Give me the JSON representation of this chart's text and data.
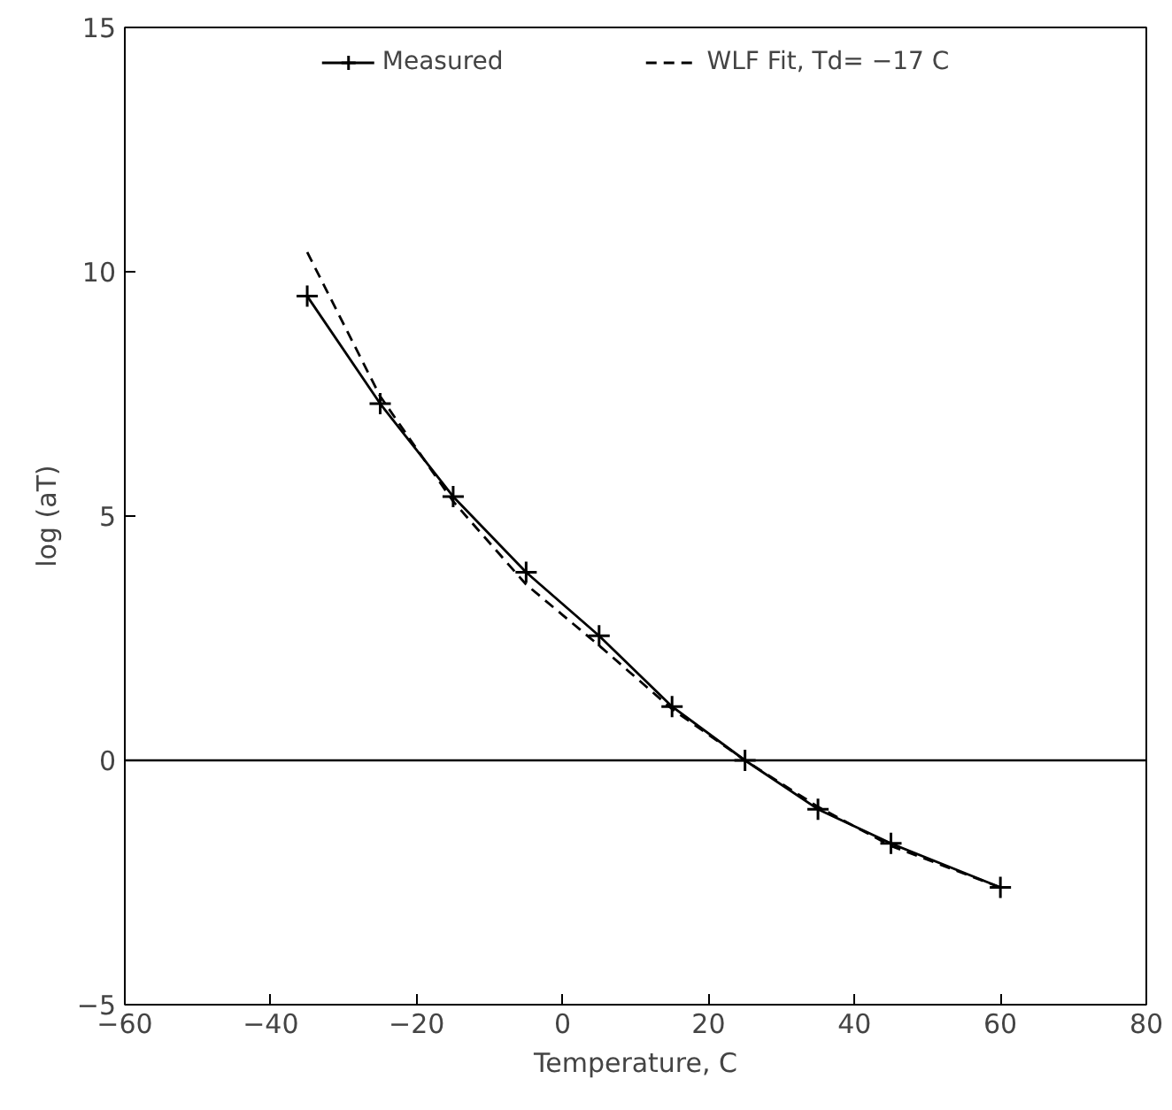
{
  "chart_data": {
    "type": "line",
    "xlabel": "Temperature, C",
    "ylabel": "log (aT)",
    "xlim": [
      -60,
      80
    ],
    "xticks": [
      -60,
      -40,
      -20,
      0,
      20,
      40,
      60,
      80
    ],
    "ylim": [
      -5,
      15
    ],
    "yticks": [
      -5,
      0,
      5,
      10,
      15
    ],
    "grid": false,
    "legend": "top",
    "ref_lines": [
      {
        "axis": "y",
        "value": 0,
        "color": "#000000",
        "line_style": "solid"
      }
    ],
    "series": [
      {
        "name": "Measured",
        "color": "#000000",
        "marker": "cross",
        "line_style": "solid",
        "x": [
          -35,
          -25,
          -15,
          -5,
          5,
          15,
          25,
          35,
          45,
          60
        ],
        "values": [
          9.5,
          7.3,
          5.4,
          3.85,
          2.55,
          1.1,
          0,
          -1.0,
          -1.7,
          -2.6
        ]
      },
      {
        "name": "WLF Fit, Td= −17 C",
        "color": "#000000",
        "marker": "none",
        "line_style": "dashed",
        "x": [
          -35,
          -25,
          -15,
          -5,
          5,
          15,
          25,
          35,
          45,
          60
        ],
        "values": [
          10.4,
          7.45,
          5.3,
          3.6,
          2.35,
          1.05,
          0,
          -0.95,
          -1.75,
          -2.6
        ]
      }
    ]
  }
}
